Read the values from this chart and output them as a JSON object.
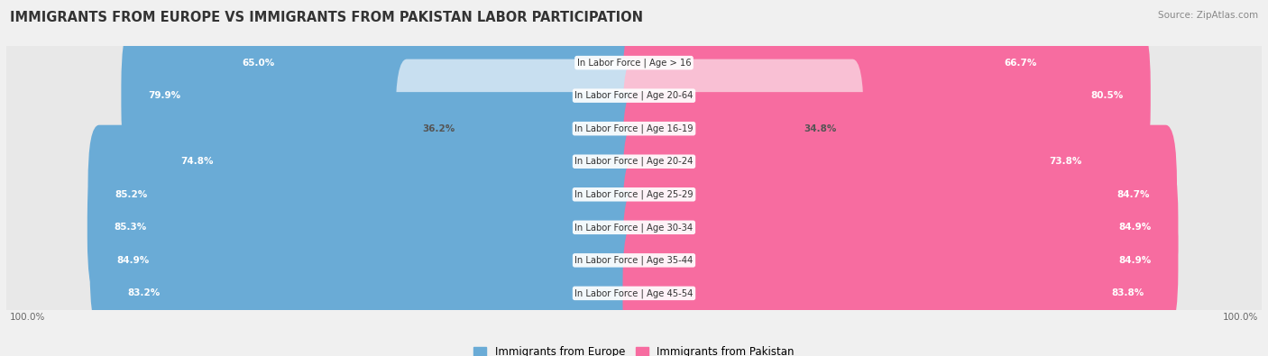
{
  "title": "IMMIGRANTS FROM EUROPE VS IMMIGRANTS FROM PAKISTAN LABOR PARTICIPATION",
  "source": "Source: ZipAtlas.com",
  "categories": [
    "In Labor Force | Age > 16",
    "In Labor Force | Age 20-64",
    "In Labor Force | Age 16-19",
    "In Labor Force | Age 20-24",
    "In Labor Force | Age 25-29",
    "In Labor Force | Age 30-34",
    "In Labor Force | Age 35-44",
    "In Labor Force | Age 45-54"
  ],
  "europe_values": [
    65.0,
    79.9,
    36.2,
    74.8,
    85.2,
    85.3,
    84.9,
    83.2
  ],
  "pakistan_values": [
    66.7,
    80.5,
    34.8,
    73.8,
    84.7,
    84.9,
    84.9,
    83.8
  ],
  "europe_color": "#6aabd6",
  "europe_color_light": "#c8dff0",
  "pakistan_color": "#f76ca0",
  "pakistan_color_light": "#f9c0d4",
  "row_bg_color": "#e8e8e8",
  "background_color": "#f0f0f0",
  "title_fontsize": 10.5,
  "label_fontsize": 7.2,
  "value_fontsize": 7.5,
  "max_value": 100.0,
  "legend_europe": "Immigrants from Europe",
  "legend_pakistan": "Immigrants from Pakistan"
}
